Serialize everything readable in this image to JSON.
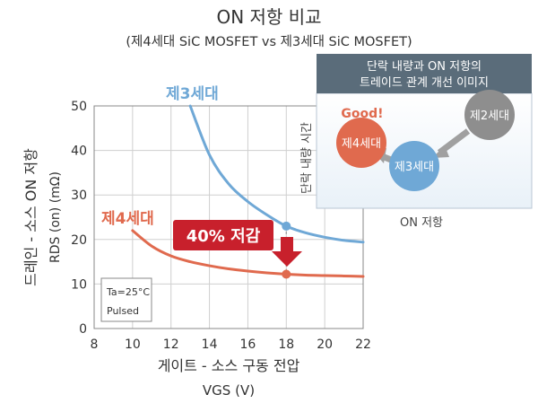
{
  "chart_data": {
    "type": "line",
    "title": "ON 저항 비교",
    "subtitle": "(제4세대 SiC MOSFET vs 제3세대 SiC MOSFET)",
    "xlabel": "게이트 - 소스 구동 전압",
    "xlabel_sub": "VGS (V)",
    "ylabel": "드레인 - 소스 ON 저항",
    "ylabel_sub": "RDS (on) (mΩ)",
    "xlim": [
      8,
      22
    ],
    "ylim": [
      0,
      50
    ],
    "x_ticks": [
      8,
      10,
      12,
      14,
      16,
      18,
      20,
      22
    ],
    "y_ticks": [
      0,
      10,
      20,
      30,
      40,
      50
    ],
    "x_tick_labels": [
      "8",
      "10",
      "12",
      "14",
      "16",
      "18",
      "20",
      "22"
    ],
    "y_tick_labels": [
      "0",
      "10",
      "20",
      "30",
      "40",
      "50"
    ],
    "grid": true,
    "series": [
      {
        "name": "제3세대",
        "color": "#6fa8d6",
        "x": [
          13,
          14,
          15,
          16,
          17,
          18,
          19,
          20,
          21,
          22
        ],
        "y": [
          50,
          39,
          32.5,
          28.5,
          25.5,
          23,
          21.5,
          20.5,
          19.8,
          19.4
        ]
      },
      {
        "name": "제4세대",
        "color": "#e06a4e",
        "x": [
          10,
          11,
          12,
          13,
          14,
          15,
          16,
          17,
          18,
          19,
          20,
          21,
          22
        ],
        "y": [
          22,
          18.5,
          16.3,
          15,
          14.1,
          13.4,
          12.9,
          12.5,
          12.2,
          12.0,
          11.9,
          11.8,
          11.7
        ]
      }
    ],
    "markers": [
      {
        "x": 18,
        "y": 23
      },
      {
        "x": 18,
        "y": 12.2
      }
    ],
    "series_labels": {
      "gen3": "제3세대",
      "gen4": "제4세대"
    },
    "callout": "40% 저감",
    "condition_box": [
      "Ta=25°C",
      "Pulsed"
    ],
    "inset": {
      "title_line1": "단락 내량과 ON 저항의",
      "title_line2": "트레이드 관계 개선 이미지",
      "ylabel": "단락 내량 시간",
      "xlabel": "ON 저항",
      "good": "Good!",
      "gen2": "제2세대",
      "gen3": "제3세대",
      "gen4": "제4세대"
    }
  }
}
